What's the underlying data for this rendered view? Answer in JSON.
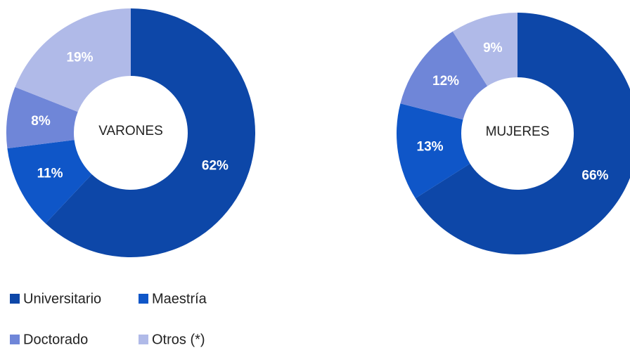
{
  "chart_data": [
    {
      "type": "donut",
      "title": "VARONES",
      "categories": [
        "Universitario",
        "Maestría",
        "Doctorado",
        "Otros (*)"
      ],
      "values": [
        62,
        11,
        8,
        19
      ],
      "value_labels": [
        "62%",
        "11%",
        "8%",
        "19%"
      ],
      "colors": [
        "#0d47a8",
        "#0f56c8",
        "#6f86d8",
        "#b0bae8"
      ]
    },
    {
      "type": "donut",
      "title": "MUJERES",
      "categories": [
        "Universitario",
        "Maestría",
        "Doctorado",
        "Otros (*)"
      ],
      "values": [
        66,
        13,
        12,
        9
      ],
      "value_labels": [
        "66%",
        "13%",
        "12%",
        "9%"
      ],
      "colors": [
        "#0d47a8",
        "#0f56c8",
        "#6f86d8",
        "#b0bae8"
      ]
    }
  ]
}
